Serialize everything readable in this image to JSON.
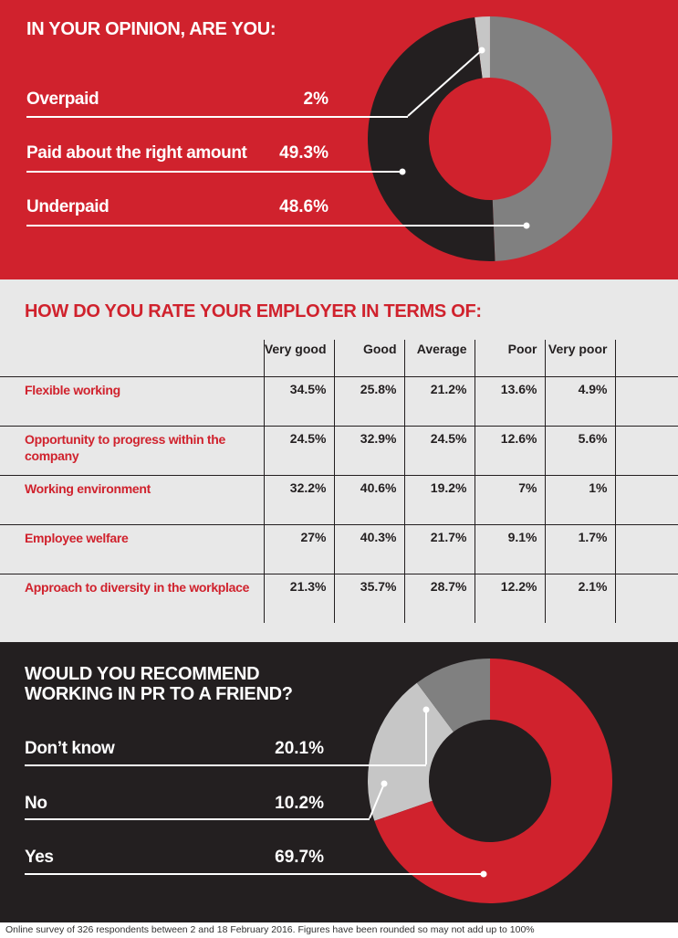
{
  "footer": "Online survey of 326 respondents between 2 and 18 February 2016. Figures have been rounded so may not add up to 100%",
  "colors": {
    "red": "#d0222d",
    "black": "#231f20",
    "grey": "#808080",
    "light_grey": "#c6c6c6",
    "panel_grey": "#e8e8e8",
    "white": "#ffffff"
  },
  "chart_data": [
    {
      "type": "pie",
      "title": "IN YOUR OPINION, ARE YOU:",
      "categories": [
        "Overpaid",
        "Paid about the right amount",
        "Underpaid"
      ],
      "values": [
        2,
        49.3,
        48.6
      ],
      "value_labels": [
        "2%",
        "49.3%",
        "48.6%"
      ],
      "slice_colors": [
        "#c6c6c6",
        "#808080",
        "#231f20"
      ],
      "donut": true,
      "legend": "left"
    },
    {
      "type": "table",
      "title": "HOW DO YOU RATE YOUR EMPLOYER IN TERMS OF:",
      "columns": [
        "Very good",
        "Good",
        "Average",
        "Poor",
        "Very poor"
      ],
      "rows": [
        {
          "label": "Flexible working",
          "values": [
            "34.5%",
            "25.8%",
            "21.2%",
            "13.6%",
            "4.9%"
          ]
        },
        {
          "label": "Opportunity to progress within the company",
          "values": [
            "24.5%",
            "32.9%",
            "24.5%",
            "12.6%",
            "5.6%"
          ]
        },
        {
          "label": "Working environment",
          "values": [
            "32.2%",
            "40.6%",
            "19.2%",
            "7%",
            "1%"
          ]
        },
        {
          "label": "Employee welfare",
          "values": [
            "27%",
            "40.3%",
            "21.7%",
            "9.1%",
            "1.7%"
          ]
        },
        {
          "label": "Approach to diversity in the workplace",
          "values": [
            "21.3%",
            "35.7%",
            "28.7%",
            "12.2%",
            "2.1%"
          ]
        }
      ]
    },
    {
      "type": "pie",
      "title": "WOULD YOU RECOMMEND WORKING IN PR TO A FRIEND?",
      "categories": [
        "Don’t know",
        "No",
        "Yes"
      ],
      "values": [
        20.1,
        10.2,
        69.7
      ],
      "value_labels": [
        "20.1%",
        "10.2%",
        "69.7%"
      ],
      "slice_colors": [
        "#c6c6c6",
        "#808080",
        "#d0222d"
      ],
      "donut": true,
      "legend": "left"
    }
  ]
}
